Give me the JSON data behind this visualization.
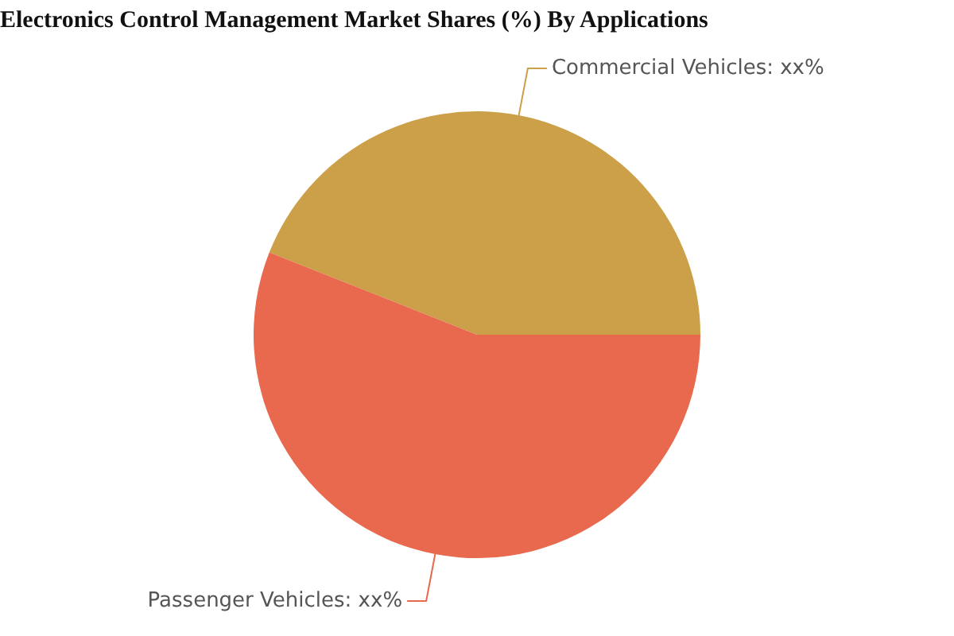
{
  "chart_data": {
    "type": "pie",
    "title": "Electronics Control Management Market Shares (%) By Applications",
    "categories": [
      "Commercial Vehicles",
      "Passenger Vehicles"
    ],
    "values": [
      44,
      56
    ],
    "colors": [
      "#cba049",
      "#e8694e"
    ],
    "value_labels": [
      "xx%",
      "xx%"
    ],
    "legend": false
  }
}
